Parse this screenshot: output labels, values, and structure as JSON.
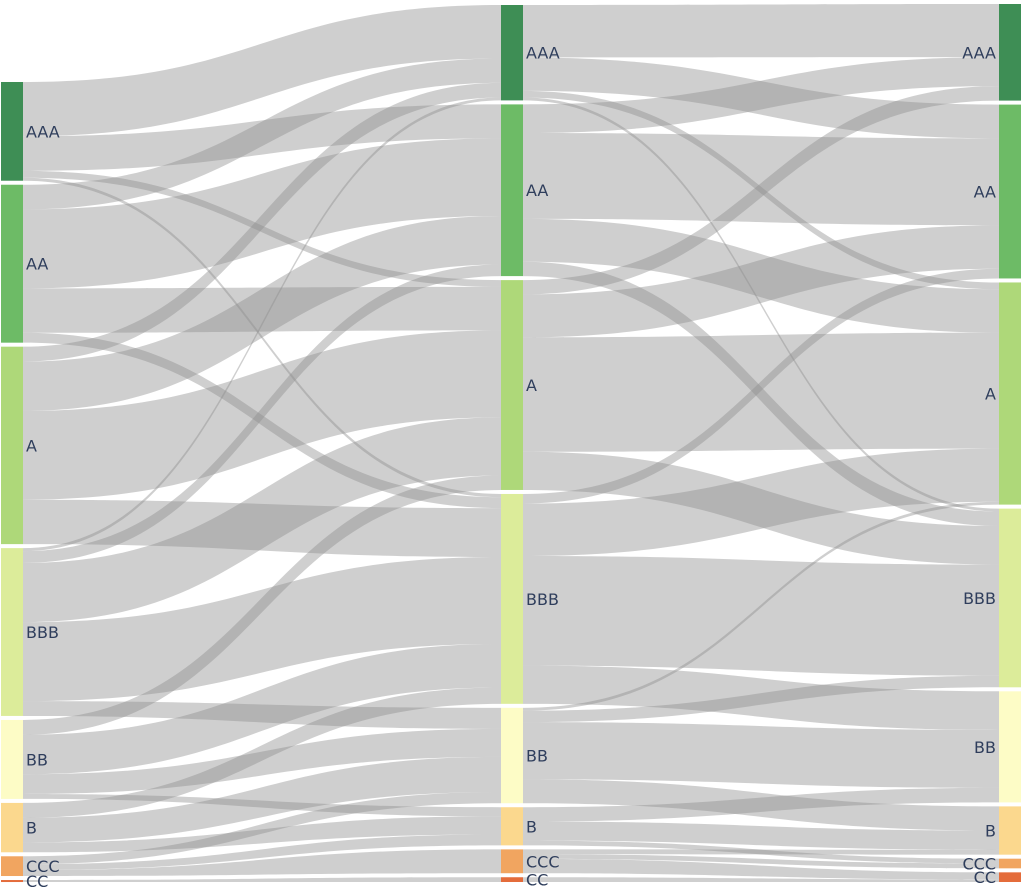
{
  "chart_data": {
    "type": "sankey",
    "stages": [
      {
        "nodes": [
          {
            "label": "AAA",
            "value": 10,
            "color": "#3e8e55"
          },
          {
            "label": "AA",
            "value": 16,
            "color": "#6dbb66"
          },
          {
            "label": "A",
            "value": 20,
            "color": "#aed879"
          },
          {
            "label": "BBB",
            "value": 17,
            "color": "#dcec9a"
          },
          {
            "label": "BB",
            "value": 8,
            "color": "#fdfcc6"
          },
          {
            "label": "B",
            "value": 5,
            "color": "#fbd88e"
          },
          {
            "label": "CCC",
            "value": 2,
            "color": "#f1a560"
          },
          {
            "label": "CC",
            "value": 0.2,
            "color": "#e46c3b"
          }
        ]
      },
      {
        "nodes": [
          {
            "label": "AAA",
            "value": 10,
            "color": "#3e8e55"
          },
          {
            "label": "AA",
            "value": 18,
            "color": "#6dbb66"
          },
          {
            "label": "A",
            "value": 22,
            "color": "#aed879"
          },
          {
            "label": "BBB",
            "value": 22,
            "color": "#dcec9a"
          },
          {
            "label": "BB",
            "value": 10,
            "color": "#fdfcc6"
          },
          {
            "label": "B",
            "value": 4,
            "color": "#fbd88e"
          },
          {
            "label": "CCC",
            "value": 2.5,
            "color": "#f1a560"
          },
          {
            "label": "CC",
            "value": 0.5,
            "color": "#e46c3b"
          }
        ]
      },
      {
        "nodes": [
          {
            "label": "AAA",
            "value": 10,
            "color": "#3e8e55"
          },
          {
            "label": "AA",
            "value": 18,
            "color": "#6dbb66"
          },
          {
            "label": "A",
            "value": 23,
            "color": "#aed879"
          },
          {
            "label": "BBB",
            "value": 18.5,
            "color": "#dcec9a"
          },
          {
            "label": "BB",
            "value": 11.5,
            "color": "#fdfcc6"
          },
          {
            "label": "B",
            "value": 5,
            "color": "#fbd88e"
          },
          {
            "label": "CCC",
            "value": 1,
            "color": "#f1a560"
          },
          {
            "label": "CC",
            "value": 1,
            "color": "#e46c3b"
          }
        ]
      }
    ],
    "flows": [
      [
        {
          "from": 0,
          "to": 0,
          "value": 5.5
        },
        {
          "from": 0,
          "to": 1,
          "value": 3.5
        },
        {
          "from": 0,
          "to": 2,
          "value": 0.7
        },
        {
          "from": 0,
          "to": 3,
          "value": 0.3
        },
        {
          "from": 1,
          "to": 0,
          "value": 2.5
        },
        {
          "from": 1,
          "to": 1,
          "value": 8
        },
        {
          "from": 1,
          "to": 2,
          "value": 4.5
        },
        {
          "from": 1,
          "to": 3,
          "value": 1
        },
        {
          "from": 2,
          "to": 0,
          "value": 1.5
        },
        {
          "from": 2,
          "to": 1,
          "value": 5
        },
        {
          "from": 2,
          "to": 2,
          "value": 9
        },
        {
          "from": 2,
          "to": 3,
          "value": 4.5
        },
        {
          "from": 3,
          "to": 0,
          "value": 0.3
        },
        {
          "from": 3,
          "to": 1,
          "value": 1.2
        },
        {
          "from": 3,
          "to": 2,
          "value": 6
        },
        {
          "from": 3,
          "to": 3,
          "value": 8
        },
        {
          "from": 3,
          "to": 4,
          "value": 1.5
        },
        {
          "from": 4,
          "to": 2,
          "value": 1.5
        },
        {
          "from": 4,
          "to": 3,
          "value": 4
        },
        {
          "from": 4,
          "to": 4,
          "value": 2
        },
        {
          "from": 4,
          "to": 5,
          "value": 0.5
        },
        {
          "from": 5,
          "to": 3,
          "value": 1.5
        },
        {
          "from": 5,
          "to": 4,
          "value": 2.5
        },
        {
          "from": 5,
          "to": 5,
          "value": 1
        },
        {
          "from": 6,
          "to": 4,
          "value": 0.8
        },
        {
          "from": 6,
          "to": 5,
          "value": 0.6
        },
        {
          "from": 6,
          "to": 6,
          "value": 0.6
        },
        {
          "from": 7,
          "to": 7,
          "value": 0.2
        }
      ],
      [
        {
          "from": 0,
          "to": 0,
          "value": 5.5
        },
        {
          "from": 0,
          "to": 1,
          "value": 3.5
        },
        {
          "from": 0,
          "to": 2,
          "value": 0.7
        },
        {
          "from": 0,
          "to": 3,
          "value": 0.3
        },
        {
          "from": 1,
          "to": 0,
          "value": 3
        },
        {
          "from": 1,
          "to": 1,
          "value": 9
        },
        {
          "from": 1,
          "to": 2,
          "value": 4.5
        },
        {
          "from": 1,
          "to": 3,
          "value": 1.5
        },
        {
          "from": 2,
          "to": 0,
          "value": 1.5
        },
        {
          "from": 2,
          "to": 1,
          "value": 4.5
        },
        {
          "from": 2,
          "to": 2,
          "value": 12
        },
        {
          "from": 2,
          "to": 3,
          "value": 4
        },
        {
          "from": 3,
          "to": 1,
          "value": 1
        },
        {
          "from": 3,
          "to": 2,
          "value": 5.5
        },
        {
          "from": 3,
          "to": 3,
          "value": 11.5
        },
        {
          "from": 3,
          "to": 4,
          "value": 4
        },
        {
          "from": 4,
          "to": 2,
          "value": 0.3
        },
        {
          "from": 4,
          "to": 3,
          "value": 1.2
        },
        {
          "from": 4,
          "to": 4,
          "value": 6
        },
        {
          "from": 4,
          "to": 5,
          "value": 2.5
        },
        {
          "from": 5,
          "to": 4,
          "value": 1.5
        },
        {
          "from": 5,
          "to": 5,
          "value": 2
        },
        {
          "from": 5,
          "to": 6,
          "value": 0.5
        },
        {
          "from": 6,
          "to": 5,
          "value": 0.5
        },
        {
          "from": 6,
          "to": 6,
          "value": 0.5
        },
        {
          "from": 6,
          "to": 7,
          "value": 1.5
        },
        {
          "from": 7,
          "to": 7,
          "value": 0.5
        }
      ]
    ]
  }
}
